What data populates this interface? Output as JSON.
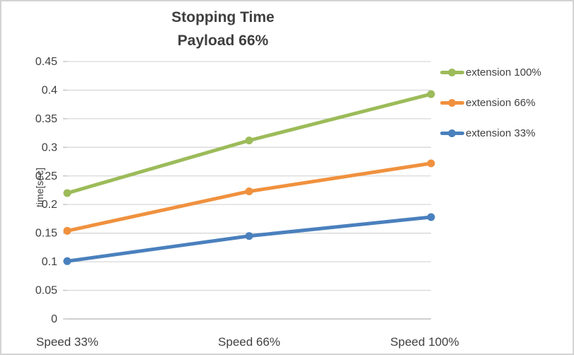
{
  "chart_data": {
    "type": "line",
    "title": "Stopping Time",
    "subtitle": "Payload 66%",
    "ylabel": "time[sec]",
    "xlabel": "",
    "categories": [
      "Speed 33%",
      "Speed 66%",
      "Speed 100%"
    ],
    "series": [
      {
        "name": "extension 100%",
        "color": "#9CBB59",
        "values": [
          0.22,
          0.312,
          0.393
        ]
      },
      {
        "name": "extension 66%",
        "color": "#F0913E",
        "values": [
          0.154,
          0.223,
          0.272
        ]
      },
      {
        "name": "extension 33%",
        "color": "#4A80BD",
        "values": [
          0.101,
          0.145,
          0.178
        ]
      }
    ],
    "ylim": [
      0,
      0.45
    ],
    "ytick_step": 0.05,
    "y_tick_labels": [
      "0",
      "0.05",
      "0.1",
      "0.15",
      "0.2",
      "0.25",
      "0.3",
      "0.35",
      "0.4",
      "0.45"
    ],
    "grid": true,
    "legend_position": "right",
    "marker": "circle",
    "palette": {
      "text": "#404040",
      "title_text": "#3F3F3F",
      "gridline": "#D9D9D9",
      "axis_line": "#BFBFBF",
      "frame_border": "#D3D3D3",
      "background": "#FFFFFF"
    }
  }
}
